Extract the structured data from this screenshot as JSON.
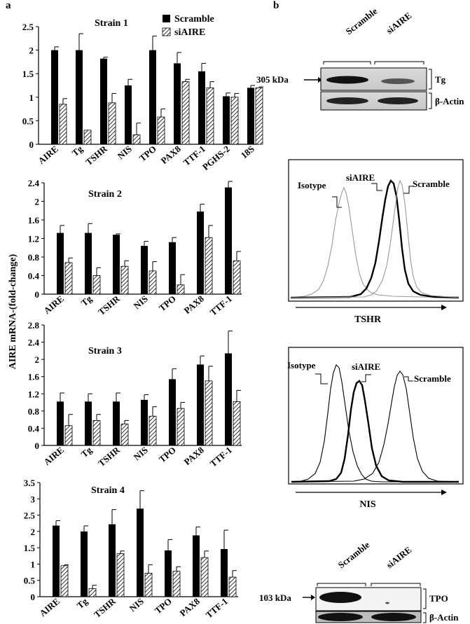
{
  "figure": {
    "panel_a_label": "a",
    "panel_b_label": "b",
    "y_axis_label": "AIRE mRNA-(fold-change)"
  },
  "legend": {
    "scramble_label": "Scramble",
    "siaire_label": "siAIRE",
    "scramble_color": "#000000",
    "siaire_pattern": "diagonal-hatch"
  },
  "chart_data": [
    {
      "type": "bar",
      "title": "Strain 1",
      "categories": [
        "AIRE",
        "Tg",
        "TSHR",
        "NIS",
        "TPO",
        "PAX8",
        "TTF-1",
        "PGHS-2",
        "18S"
      ],
      "series": [
        {
          "name": "Scramble",
          "values": [
            2.0,
            2.0,
            1.82,
            1.25,
            2.0,
            1.72,
            1.55,
            1.02,
            1.2
          ],
          "errors": [
            0.07,
            0.35,
            0.03,
            0.13,
            0.3,
            0.23,
            0.17,
            0.07,
            0.05
          ]
        },
        {
          "name": "siAIRE",
          "values": [
            0.85,
            0.3,
            0.88,
            0.2,
            0.58,
            1.33,
            1.2,
            1.0,
            1.2
          ],
          "errors": [
            0.12,
            0.0,
            0.2,
            0.25,
            0.17,
            0.05,
            0.13,
            0.08,
            0.02
          ]
        }
      ],
      "ylim": [
        0,
        2.5
      ],
      "yticks": [
        "0",
        "0.5",
        "1",
        "1.5",
        "2",
        "2.5"
      ]
    },
    {
      "type": "bar",
      "title": "Strain 2",
      "categories": [
        "AIRE",
        "Tg",
        "TSHR",
        "NIS",
        "TPO",
        "PAX8",
        "TTF-1"
      ],
      "series": [
        {
          "name": "Scramble",
          "values": [
            1.32,
            1.32,
            1.28,
            1.04,
            1.12,
            1.78,
            2.3
          ],
          "errors": [
            0.16,
            0.2,
            0.02,
            0.1,
            0.1,
            0.16,
            0.13
          ]
        },
        {
          "name": "siAIRE",
          "values": [
            0.68,
            0.4,
            0.6,
            0.5,
            0.2,
            1.22,
            0.72
          ],
          "errors": [
            0.1,
            0.17,
            0.12,
            0.2,
            0.22,
            0.26,
            0.2
          ]
        }
      ],
      "ylim": [
        0,
        2.4
      ],
      "yticks": [
        "0",
        "0.4",
        "0.8",
        "1.2",
        "1.6",
        "2",
        "2.4"
      ]
    },
    {
      "type": "bar",
      "title": "Strain 3",
      "categories": [
        "AIRE",
        "Tg",
        "TSHR",
        "NIS",
        "TPO",
        "PAX8",
        "TTF-1"
      ],
      "series": [
        {
          "name": "Scramble",
          "values": [
            1.02,
            1.02,
            1.02,
            1.06,
            1.54,
            1.88,
            2.14
          ],
          "errors": [
            0.2,
            0.18,
            0.2,
            0.12,
            0.24,
            0.2,
            0.52
          ]
        },
        {
          "name": "siAIRE",
          "values": [
            0.46,
            0.58,
            0.5,
            0.68,
            0.86,
            1.5,
            1.02
          ],
          "errors": [
            0.26,
            0.14,
            0.08,
            0.22,
            0.14,
            0.34,
            0.26
          ]
        }
      ],
      "ylim": [
        0,
        2.8
      ],
      "yticks": [
        "0",
        "0.4",
        "0.8",
        "1.2",
        "1.6",
        "2",
        "2.4",
        "2.8"
      ]
    },
    {
      "type": "bar",
      "title": "Strain 4",
      "categories": [
        "AIRE",
        "Tg",
        "TSHR",
        "NIS",
        "TPO",
        "PAX8",
        "TTF-1"
      ],
      "series": [
        {
          "name": "Scramble",
          "values": [
            2.18,
            2.0,
            2.22,
            2.7,
            1.42,
            1.88,
            1.46
          ],
          "errors": [
            0.15,
            0.17,
            0.45,
            0.55,
            0.33,
            0.26,
            0.58
          ]
        },
        {
          "name": "siAIRE",
          "values": [
            0.95,
            0.25,
            1.32,
            0.72,
            0.78,
            1.2,
            0.6
          ],
          "errors": [
            0.03,
            0.1,
            0.08,
            0.26,
            0.14,
            0.2,
            0.2
          ]
        }
      ],
      "ylim": [
        0,
        3.5
      ],
      "yticks": [
        "0",
        "0.5",
        "1",
        "1.5",
        "2",
        "2.5",
        "3",
        "3.5"
      ]
    }
  ],
  "western_tg": {
    "lane_labels": [
      "Scramble",
      "siAIRE"
    ],
    "size_label": "305 kDa",
    "target_label": "Tg",
    "loading_label": "β-Actin"
  },
  "flow_tshr": {
    "labels": [
      "Isotype",
      "siAIRE",
      "Scramble"
    ],
    "axis_label": "TSHR"
  },
  "flow_nis": {
    "labels": [
      "Isotype",
      "siAIRE",
      "Scramble"
    ],
    "axis_label": "NIS"
  },
  "western_tpo": {
    "lane_labels": [
      "Scramble",
      "siAIRE"
    ],
    "size_label": "103 kDa",
    "target_label": "TPO",
    "loading_label": "β-Actin"
  }
}
